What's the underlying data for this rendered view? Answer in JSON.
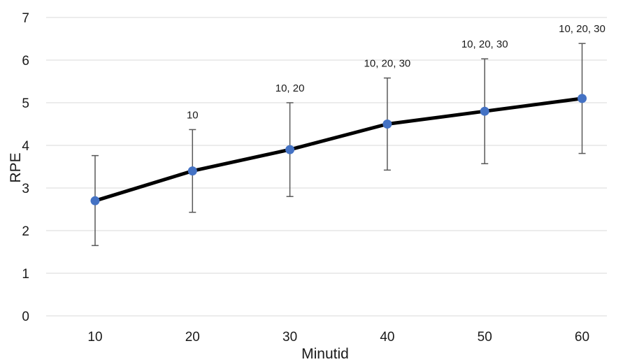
{
  "chart_data": {
    "type": "line",
    "xlabel": "Minutid",
    "ylabel": "RPE",
    "x": [
      10,
      20,
      30,
      40,
      50,
      60
    ],
    "x_tick_labels": [
      "10",
      "20",
      "30",
      "40",
      "50",
      "60"
    ],
    "y_tick_labels": [
      "0",
      "1",
      "2",
      "3",
      "4",
      "5",
      "6",
      "7"
    ],
    "ylim": [
      0,
      7
    ],
    "grid": "horizontal",
    "legend": "none",
    "series": [
      {
        "values": [
          2.7,
          3.4,
          3.9,
          4.5,
          4.8,
          5.1
        ],
        "error_low": [
          1.65,
          2.43,
          2.8,
          3.42,
          3.57,
          3.81
        ],
        "error_high": [
          3.76,
          4.37,
          5.0,
          5.58,
          6.03,
          6.39
        ],
        "line_color": "#000000",
        "marker_color": "#4472C4",
        "error_bar_color": "#595959"
      }
    ],
    "annotations": [
      "",
      "10",
      "10, 20",
      "10, 20, 30",
      "10, 20, 30",
      "10, 20, 30"
    ]
  }
}
